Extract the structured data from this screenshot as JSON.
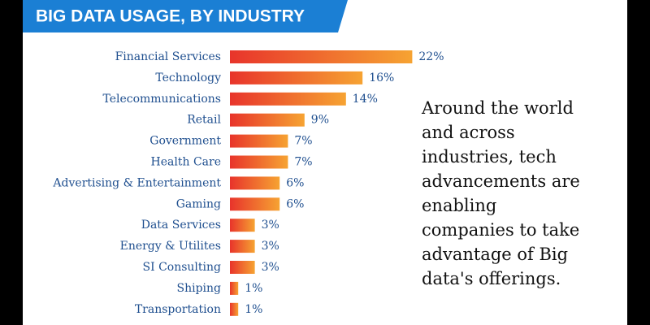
{
  "chart_data": {
    "type": "bar",
    "orientation": "horizontal",
    "title": "BIG DATA USAGE, BY INDUSTRY",
    "categories": [
      "Financial Services",
      "Technology",
      "Telecommunications",
      "Retail",
      "Government",
      "Health Care",
      "Advertising & Entertainment",
      "Gaming",
      "Data Services",
      "Energy & Utilites",
      "SI Consulting",
      "Shiping",
      "Transportation"
    ],
    "values": [
      22,
      16,
      14,
      9,
      7,
      7,
      6,
      6,
      3,
      3,
      3,
      1,
      1
    ],
    "value_labels": [
      "22%",
      "16%",
      "14%",
      "9%",
      "7%",
      "7%",
      "6%",
      "6%",
      "3%",
      "3%",
      "3%",
      "1%",
      "1%"
    ],
    "color": [
      "#e8342b",
      "#f6a332"
    ],
    "annotation": [
      "Around the world",
      "and across",
      "industries, tech",
      "advancements are",
      "enabling",
      "companies to take",
      "advantage of Big",
      "data's offerings."
    ]
  }
}
